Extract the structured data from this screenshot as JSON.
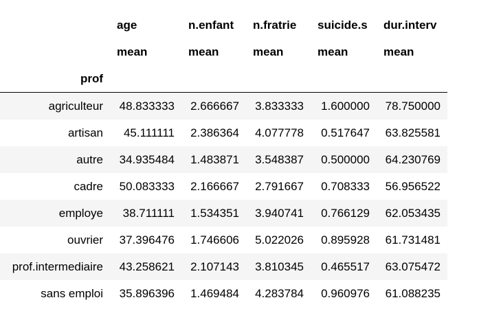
{
  "table": {
    "columns": [
      "age",
      "n.enfant",
      "n.fratrie",
      "suicide.s",
      "dur.interv"
    ],
    "agg_label": "mean",
    "index_name": "prof",
    "rows": [
      {
        "label": "agriculteur",
        "values": [
          "48.833333",
          "2.666667",
          "3.833333",
          "1.600000",
          "78.750000"
        ]
      },
      {
        "label": "artisan",
        "values": [
          "45.111111",
          "2.386364",
          "4.077778",
          "0.517647",
          "63.825581"
        ]
      },
      {
        "label": "autre",
        "values": [
          "34.935484",
          "1.483871",
          "3.548387",
          "0.500000",
          "64.230769"
        ]
      },
      {
        "label": "cadre",
        "values": [
          "50.083333",
          "2.166667",
          "2.791667",
          "0.708333",
          "56.956522"
        ]
      },
      {
        "label": "employe",
        "values": [
          "38.711111",
          "1.534351",
          "3.940741",
          "0.766129",
          "62.053435"
        ]
      },
      {
        "label": "ouvrier",
        "values": [
          "37.396476",
          "1.746606",
          "5.022026",
          "0.895928",
          "61.731481"
        ]
      },
      {
        "label": "prof.intermediaire",
        "values": [
          "43.258621",
          "2.107143",
          "3.810345",
          "0.465517",
          "63.075472"
        ]
      },
      {
        "label": "sans emploi",
        "values": [
          "35.896396",
          "1.469484",
          "4.283784",
          "0.960976",
          "61.088235"
        ]
      }
    ]
  },
  "colors": {
    "stripe": "#f5f5f5",
    "header_rule": "#000000"
  }
}
